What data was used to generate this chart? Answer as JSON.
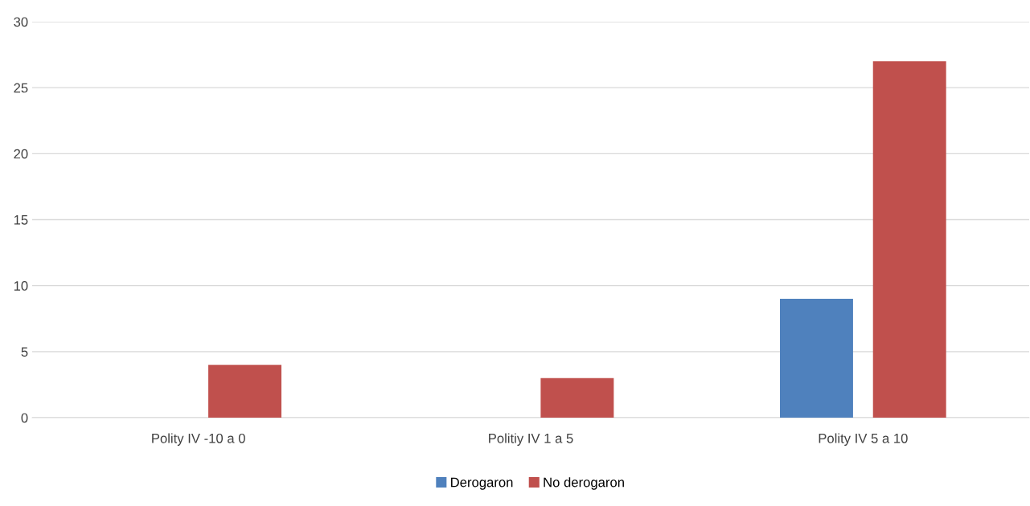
{
  "chart_data": {
    "type": "bar",
    "categories": [
      "Polity IV -10 a 0",
      "Politiy IV 1 a 5",
      "Polity IV 5 a 10"
    ],
    "series": [
      {
        "name": "Derogaron",
        "color": "#4f81bd",
        "values": [
          0,
          0,
          9
        ]
      },
      {
        "name": "No derogaron",
        "color": "#c0504d",
        "values": [
          4,
          3,
          27
        ]
      }
    ],
    "ylim": [
      0,
      30
    ],
    "yticks": [
      0,
      5,
      10,
      15,
      20,
      25,
      30
    ],
    "grid": "y",
    "legend": "bottom"
  }
}
